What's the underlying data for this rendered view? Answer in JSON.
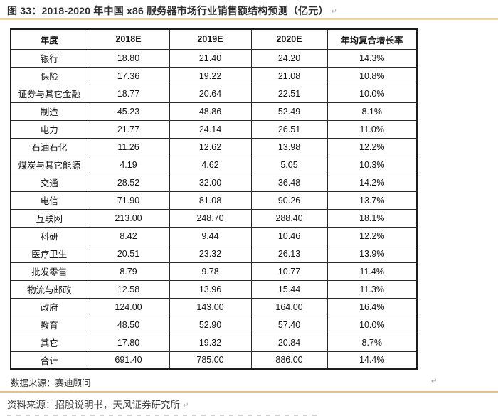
{
  "page": {
    "title": "图 33：2018-2020 年中国 x86 服务器市场行业销售额结构预测（亿元）",
    "return_mark": "↵",
    "table_note": "数据来源：赛迪顾问",
    "footer_note": "资料来源：招股说明书，天风证券研究所"
  },
  "colors": {
    "rule_top": "#eed3a7",
    "rule_bottom": "#e3c193",
    "table_border": "#1c1c1c",
    "text": "#141414",
    "mark_gray": "#9b9b9b"
  },
  "table": {
    "headers": [
      "年度",
      "2018E",
      "2019E",
      "2020E",
      "年均复合增长率"
    ],
    "rows": [
      [
        "银行",
        "18.80",
        "21.40",
        "24.20",
        "14.3%"
      ],
      [
        "保险",
        "17.36",
        "19.22",
        "21.08",
        "10.8%"
      ],
      [
        "证券与其它金融",
        "18.77",
        "20.64",
        "22.51",
        "10.0%"
      ],
      [
        "制造",
        "45.23",
        "48.86",
        "52.49",
        "8.1%"
      ],
      [
        "电力",
        "21.77",
        "24.14",
        "26.51",
        "11.0%"
      ],
      [
        "石油石化",
        "11.26",
        "12.62",
        "13.98",
        "12.2%"
      ],
      [
        "煤炭与其它能源",
        "4.19",
        "4.62",
        "5.05",
        "10.3%"
      ],
      [
        "交通",
        "28.52",
        "32.00",
        "36.48",
        "14.2%"
      ],
      [
        "电信",
        "71.90",
        "81.08",
        "90.26",
        "13.7%"
      ],
      [
        "互联网",
        "213.00",
        "248.70",
        "288.40",
        "18.1%"
      ],
      [
        "科研",
        "8.42",
        "9.44",
        "10.46",
        "12.2%"
      ],
      [
        "医疗卫生",
        "20.51",
        "23.32",
        "26.13",
        "13.9%"
      ],
      [
        "批发零售",
        "8.79",
        "9.78",
        "10.77",
        "11.4%"
      ],
      [
        "物流与邮政",
        "12.58",
        "13.96",
        "15.44",
        "11.3%"
      ],
      [
        "政府",
        "124.00",
        "143.00",
        "164.00",
        "16.4%"
      ],
      [
        "教育",
        "48.50",
        "52.90",
        "57.40",
        "10.0%"
      ],
      [
        "其它",
        "17.80",
        "19.32",
        "20.84",
        "8.7%"
      ],
      [
        "合计",
        "691.40",
        "785.00",
        "886.00",
        "14.4%"
      ]
    ]
  },
  "chart_data": {
    "type": "table",
    "title": "图 33：2018-2020 年中国 x86 服务器市场行业销售额结构预测（亿元）",
    "columns": [
      "年度",
      "2018E",
      "2019E",
      "2020E",
      "年均复合增长率"
    ],
    "rows": [
      [
        "银行",
        18.8,
        21.4,
        24.2,
        "14.3%"
      ],
      [
        "保险",
        17.36,
        19.22,
        21.08,
        "10.8%"
      ],
      [
        "证券与其它金融",
        18.77,
        20.64,
        22.51,
        "10.0%"
      ],
      [
        "制造",
        45.23,
        48.86,
        52.49,
        "8.1%"
      ],
      [
        "电力",
        21.77,
        24.14,
        26.51,
        "11.0%"
      ],
      [
        "石油石化",
        11.26,
        12.62,
        13.98,
        "12.2%"
      ],
      [
        "煤炭与其它能源",
        4.19,
        4.62,
        5.05,
        "10.3%"
      ],
      [
        "交通",
        28.52,
        32.0,
        36.48,
        "14.2%"
      ],
      [
        "电信",
        71.9,
        81.08,
        90.26,
        "13.7%"
      ],
      [
        "互联网",
        213.0,
        248.7,
        288.4,
        "18.1%"
      ],
      [
        "科研",
        8.42,
        9.44,
        10.46,
        "12.2%"
      ],
      [
        "医疗卫生",
        20.51,
        23.32,
        26.13,
        "13.9%"
      ],
      [
        "批发零售",
        8.79,
        9.78,
        10.77,
        "11.4%"
      ],
      [
        "物流与邮政",
        12.58,
        13.96,
        15.44,
        "11.3%"
      ],
      [
        "政府",
        124.0,
        143.0,
        164.0,
        "16.4%"
      ],
      [
        "教育",
        48.5,
        52.9,
        57.4,
        "10.0%"
      ],
      [
        "其它",
        17.8,
        19.32,
        20.84,
        "8.7%"
      ],
      [
        "合计",
        691.4,
        785.0,
        886.0,
        "14.4%"
      ]
    ],
    "source_note": "数据来源：赛迪顾问",
    "footer_source": "资料来源：招股说明书，天风证券研究所"
  }
}
